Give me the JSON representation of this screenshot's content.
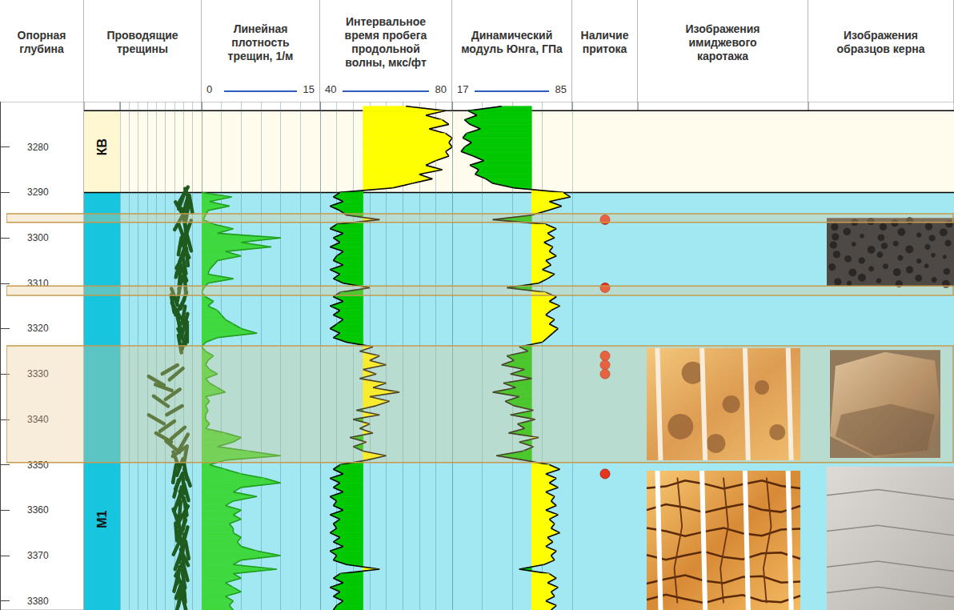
{
  "chart_data": {
    "type": "well_log",
    "depth": {
      "title": "Опорная глубина",
      "ylim": [
        3270,
        3382
      ],
      "yticks": [
        3280,
        3290,
        3300,
        3310,
        3320,
        3330,
        3340,
        3350,
        3360,
        3370,
        3380
      ]
    },
    "zones": [
      {
        "name": "КВ",
        "top": 3272,
        "bottom": 3290,
        "label_depth": 3280,
        "color": "#fff7d1"
      },
      {
        "name": "M1",
        "top": 3290,
        "bottom": 3382,
        "label_depth": 3362,
        "color": "#17c6de"
      }
    ],
    "highlights": [
      [
        3294.7,
        3296.6
      ],
      [
        3310.6,
        3312.7
      ],
      [
        3323.8,
        3349.5
      ]
    ],
    "tracks": [
      {
        "title": "Проводящие трещины",
        "type": "tadpole",
        "xlim": [
          0,
          90
        ],
        "xticks": [
          0,
          10,
          20,
          30,
          40,
          50,
          60,
          70,
          80,
          90
        ],
        "color": "#1f5a1f",
        "fractures": [
          [
            3290.5,
            70,
            60
          ],
          [
            3291,
            75,
            110
          ],
          [
            3291.8,
            68,
            70
          ],
          [
            3292.5,
            78,
            100
          ],
          [
            3293,
            72,
            75
          ],
          [
            3293.8,
            66,
            120
          ],
          [
            3294.5,
            74,
            80
          ],
          [
            3295.5,
            70,
            100
          ],
          [
            3296.5,
            65,
            60
          ],
          [
            3297.2,
            72,
            95
          ],
          [
            3298,
            75,
            70
          ],
          [
            3298.8,
            68,
            110
          ],
          [
            3299.5,
            73,
            85
          ],
          [
            3300.3,
            70,
            65
          ],
          [
            3301,
            76,
            105
          ],
          [
            3301.8,
            66,
            80
          ],
          [
            3302.6,
            72,
            115
          ],
          [
            3303.4,
            69,
            70
          ],
          [
            3304.2,
            74,
            95
          ],
          [
            3305,
            67,
            60
          ],
          [
            3306,
            71,
            100
          ],
          [
            3306.8,
            64,
            75
          ],
          [
            3307.6,
            70,
            110
          ],
          [
            3308.5,
            66,
            85
          ],
          [
            3309.5,
            68,
            70
          ],
          [
            3310.5,
            72,
            95
          ],
          [
            3312,
            65,
            80
          ],
          [
            3313,
            60,
            110
          ],
          [
            3313.8,
            70,
            70
          ],
          [
            3314.5,
            58,
            100
          ],
          [
            3315.3,
            66,
            60
          ],
          [
            3316,
            62,
            120
          ],
          [
            3317,
            70,
            80
          ],
          [
            3317.8,
            64,
            100
          ],
          [
            3318.6,
            72,
            75
          ],
          [
            3319.5,
            66,
            105
          ],
          [
            3320.3,
            70,
            65
          ],
          [
            3321,
            74,
            90
          ],
          [
            3321.8,
            68,
            115
          ],
          [
            3322.6,
            71,
            75
          ],
          [
            3323.4,
            66,
            100
          ],
          [
            3329,
            55,
            30
          ],
          [
            3330,
            62,
            40
          ],
          [
            3331.5,
            40,
            150
          ],
          [
            3333,
            48,
            160
          ],
          [
            3334.5,
            58,
            35
          ],
          [
            3336,
            45,
            145
          ],
          [
            3338,
            60,
            30
          ],
          [
            3340,
            40,
            150
          ],
          [
            3341.5,
            52,
            35
          ],
          [
            3343,
            64,
            40
          ],
          [
            3344,
            48,
            150
          ],
          [
            3345,
            70,
            60
          ],
          [
            3346,
            58,
            140
          ],
          [
            3347,
            66,
            35
          ],
          [
            3348,
            72,
            80
          ],
          [
            3349,
            62,
            110
          ],
          [
            3350.5,
            66,
            70
          ],
          [
            3351.3,
            72,
            100
          ],
          [
            3352,
            60,
            80
          ],
          [
            3352.8,
            74,
            110
          ],
          [
            3353.6,
            65,
            65
          ],
          [
            3354.4,
            70,
            95
          ],
          [
            3355.2,
            62,
            75
          ],
          [
            3356,
            73,
            105
          ],
          [
            3356.8,
            66,
            80
          ],
          [
            3357.6,
            70,
            115
          ],
          [
            3358.4,
            63,
            70
          ],
          [
            3359.2,
            72,
            100
          ],
          [
            3360,
            66,
            85
          ],
          [
            3360.8,
            70,
            60
          ],
          [
            3361.6,
            62,
            110
          ],
          [
            3362.4,
            71,
            80
          ],
          [
            3363.2,
            65,
            100
          ],
          [
            3364,
            69,
            70
          ],
          [
            3364.8,
            62,
            95
          ],
          [
            3365.6,
            72,
            75
          ],
          [
            3366.4,
            66,
            110
          ],
          [
            3367.2,
            70,
            85
          ],
          [
            3368,
            63,
            65
          ],
          [
            3368.8,
            74,
            100
          ],
          [
            3369.6,
            67,
            80
          ],
          [
            3370.4,
            71,
            115
          ],
          [
            3371.2,
            64,
            70
          ],
          [
            3372,
            70,
            95
          ],
          [
            3372.8,
            66,
            60
          ],
          [
            3373.6,
            72,
            105
          ],
          [
            3374.4,
            64,
            80
          ],
          [
            3375.2,
            70,
            100
          ],
          [
            3376,
            62,
            75
          ],
          [
            3376.8,
            68,
            110
          ],
          [
            3377.6,
            65,
            70
          ],
          [
            3378.4,
            71,
            95
          ],
          [
            3379.2,
            66,
            80
          ],
          [
            3380,
            70,
            105
          ],
          [
            3381,
            64,
            75
          ]
        ]
      },
      {
        "title": "Линейная плотность трещин, 1/м",
        "type": "area",
        "xlim": [
          0,
          15
        ],
        "xticks": [
          0,
          2.5,
          5,
          7.5,
          10,
          12.5,
          15
        ],
        "color": "#1f9e1f",
        "depth": [
          3290,
          3291,
          3292,
          3293,
          3294,
          3295,
          3296,
          3297,
          3298,
          3299,
          3300,
          3301,
          3302,
          3303,
          3304,
          3305,
          3306,
          3307,
          3308,
          3309,
          3310,
          3311,
          3312,
          3313,
          3314,
          3315,
          3316,
          3317,
          3318,
          3319,
          3320,
          3321,
          3322,
          3323,
          3324,
          3325,
          3326,
          3327,
          3328,
          3329,
          3330,
          3331,
          3332,
          3333,
          3334,
          3335,
          3336,
          3337,
          3338,
          3339,
          3340,
          3341,
          3342,
          3343,
          3344,
          3345,
          3346,
          3347,
          3348,
          3349,
          3350,
          3351,
          3352,
          3353,
          3354,
          3355,
          3356,
          3357,
          3358,
          3359,
          3360,
          3361,
          3362,
          3363,
          3364,
          3365,
          3366,
          3367,
          3368,
          3369,
          3370,
          3371,
          3372,
          3373,
          3374,
          3375,
          3376,
          3377,
          3378,
          3379,
          3380,
          3381,
          3382
        ],
        "values": [
          0,
          3.8,
          1,
          3.5,
          0.8,
          0.5,
          0.2,
          1.5,
          4,
          2,
          10,
          5,
          8.8,
          3,
          5,
          2,
          1.5,
          1,
          0.8,
          4,
          0.8,
          0.3,
          0,
          0.5,
          1.5,
          0.8,
          2,
          2.5,
          3,
          4,
          5,
          7,
          2,
          0.5,
          0,
          0.5,
          1.5,
          0.8,
          0.5,
          1,
          2,
          0.5,
          1,
          2,
          3,
          0.5,
          1,
          0.5,
          0.8,
          0.5,
          0.5,
          1,
          0.5,
          3,
          5,
          4,
          2,
          6,
          10,
          3,
          1,
          3,
          5,
          8,
          10,
          5,
          4,
          7,
          4,
          3,
          5,
          4,
          5,
          3.5,
          4,
          4,
          5,
          4.5,
          5,
          7,
          10,
          5,
          4,
          9.5,
          4,
          5,
          3,
          4,
          5,
          3,
          4,
          3.5,
          4
        ]
      },
      {
        "title": "Интервальное время пробега продольной волны, мкс/фт",
        "type": "cutoff_fill",
        "xlim": [
          40,
          80
        ],
        "xticks": [
          40,
          45,
          50,
          55,
          60,
          65,
          70,
          75,
          80
        ],
        "cutoff": 53,
        "color": "#000000",
        "depth": [
          3271,
          3272,
          3273,
          3274,
          3275,
          3276,
          3277,
          3278,
          3279,
          3280,
          3281,
          3282,
          3283,
          3284,
          3285,
          3286,
          3287,
          3288,
          3289,
          3290,
          3291,
          3292,
          3293,
          3294,
          3295,
          3296,
          3297,
          3298,
          3299,
          3300,
          3301,
          3302,
          3303,
          3304,
          3305,
          3306,
          3307,
          3308,
          3309,
          3310,
          3311,
          3312,
          3313,
          3314,
          3315,
          3316,
          3317,
          3318,
          3319,
          3320,
          3321,
          3322,
          3323,
          3324,
          3325,
          3326,
          3327,
          3328,
          3329,
          3330,
          3331,
          3332,
          3333,
          3334,
          3335,
          3336,
          3337,
          3338,
          3339,
          3340,
          3341,
          3342,
          3343,
          3344,
          3345,
          3346,
          3347,
          3348,
          3349,
          3350,
          3351,
          3352,
          3353,
          3354,
          3355,
          3356,
          3357,
          3358,
          3359,
          3360,
          3361,
          3362,
          3363,
          3364,
          3365,
          3366,
          3367,
          3368,
          3369,
          3370,
          3371,
          3372,
          3373,
          3374,
          3375,
          3376,
          3377,
          3378,
          3379,
          3380,
          3381,
          3382
        ],
        "values": [
          66,
          78,
          72,
          77,
          79,
          73,
          78,
          80,
          79,
          80,
          78,
          79,
          75,
          72,
          77,
          70,
          74,
          68,
          62,
          46,
          44,
          47,
          43,
          46,
          48,
          58,
          45,
          43,
          47,
          44,
          46,
          43,
          47,
          45,
          44,
          47,
          43,
          46,
          44,
          47,
          55,
          46,
          44,
          47,
          43,
          46,
          44,
          47,
          45,
          43,
          46,
          44,
          48,
          56,
          52,
          58,
          55,
          60,
          53,
          57,
          52,
          60,
          56,
          64,
          55,
          61,
          57,
          51,
          58,
          50,
          55,
          52,
          56,
          49,
          54,
          50,
          53,
          60,
          54,
          46,
          44,
          47,
          43,
          46,
          44,
          47,
          43,
          45,
          44,
          47,
          43,
          46,
          44,
          45,
          43,
          46,
          44,
          47,
          43,
          45,
          44,
          48,
          58,
          46,
          44,
          47,
          43,
          46,
          44,
          47,
          45,
          44
        ]
      },
      {
        "title": "Динамический модуль Юнга, ГПа",
        "type": "cutoff_fill",
        "xlim": [
          17,
          85
        ],
        "xticks": [
          17,
          34,
          51,
          68,
          85
        ],
        "cutoff": 62,
        "color": "#000000",
        "depth": [
          3271,
          3272,
          3273,
          3274,
          3275,
          3276,
          3277,
          3278,
          3279,
          3280,
          3281,
          3282,
          3283,
          3284,
          3285,
          3286,
          3287,
          3288,
          3289,
          3290,
          3291,
          3292,
          3293,
          3294,
          3295,
          3296,
          3297,
          3298,
          3299,
          3300,
          3301,
          3302,
          3303,
          3304,
          3305,
          3306,
          3307,
          3308,
          3309,
          3310,
          3311,
          3312,
          3313,
          3314,
          3315,
          3316,
          3317,
          3318,
          3319,
          3320,
          3321,
          3322,
          3323,
          3324,
          3325,
          3326,
          3327,
          3328,
          3329,
          3330,
          3331,
          3332,
          3333,
          3334,
          3335,
          3336,
          3337,
          3338,
          3339,
          3340,
          3341,
          3342,
          3343,
          3344,
          3345,
          3346,
          3347,
          3348,
          3349,
          3350,
          3351,
          3352,
          3353,
          3354,
          3355,
          3356,
          3357,
          3358,
          3359,
          3360,
          3361,
          3362,
          3363,
          3364,
          3365,
          3366,
          3367,
          3368,
          3369,
          3370,
          3371,
          3372,
          3373,
          3374,
          3375,
          3376,
          3377,
          3378,
          3379,
          3380,
          3381,
          3382
        ],
        "values": [
          45,
          26,
          31,
          24,
          27,
          33,
          25,
          23,
          28,
          24,
          22,
          29,
          35,
          27,
          32,
          30,
          36,
          40,
          52,
          80,
          84,
          72,
          79,
          71,
          62,
          40,
          70,
          76,
          71,
          75,
          69,
          74,
          72,
          76,
          70,
          73,
          68,
          75,
          71,
          66,
          48,
          70,
          76,
          72,
          78,
          73,
          70,
          75,
          72,
          77,
          74,
          71,
          68,
          55,
          60,
          48,
          52,
          45,
          58,
          50,
          62,
          46,
          53,
          40,
          55,
          47,
          52,
          63,
          50,
          64,
          54,
          58,
          49,
          66,
          55,
          63,
          57,
          42,
          58,
          72,
          78,
          70,
          76,
          72,
          77,
          70,
          75,
          73,
          76,
          70,
          77,
          72,
          75,
          73,
          78,
          71,
          74,
          70,
          76,
          73,
          75,
          69,
          55,
          72,
          76,
          71,
          77,
          73,
          75,
          70,
          76,
          73
        ]
      },
      {
        "title": "Наличие притока",
        "type": "markers",
        "color": "#e8341c",
        "depth": [
          3296,
          3311,
          3326,
          3328,
          3330,
          3352
        ]
      },
      {
        "title": "Изображения имиджевого каротажа",
        "type": "image",
        "intervals": [
          [
            3324.3,
            3349
          ],
          [
            3351.3,
            3382
          ]
        ]
      },
      {
        "title": "Изображения образцов керна",
        "type": "image",
        "intervals": [
          [
            3295.6,
            3310.7
          ],
          [
            3324.7,
            3348.5
          ],
          [
            3350.4,
            3382
          ]
        ]
      }
    ],
    "grid": true,
    "tick_labels": "y"
  }
}
